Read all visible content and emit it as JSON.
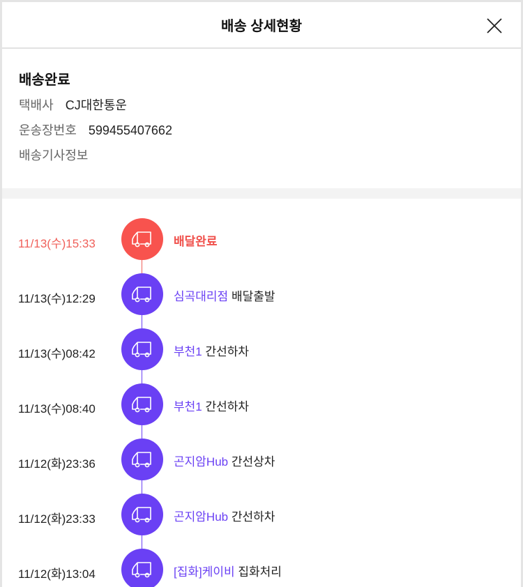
{
  "header": {
    "title": "배송 상세현황",
    "close_icon": "close-icon"
  },
  "summary": {
    "status": "배송완료",
    "courier_label": "택배사",
    "courier_value": "CJ대한통운",
    "tracking_label": "운송장번호",
    "tracking_value": "599455407662",
    "driver_info": "배송기사정보"
  },
  "colors": {
    "done": "#f8534e",
    "progress": "#6a40f4"
  },
  "timeline": [
    {
      "time": "11/13(수)15:33",
      "location": "",
      "event": "배달완료",
      "icon": "truck-icon",
      "done": true
    },
    {
      "time": "11/13(수)12:29",
      "location": "심곡대리점",
      "event": "배달출발",
      "icon": "truck-icon"
    },
    {
      "time": "11/13(수)08:42",
      "location": "부천1",
      "event": "간선하차",
      "icon": "truck-icon"
    },
    {
      "time": "11/13(수)08:40",
      "location": "부천1",
      "event": "간선하차",
      "icon": "truck-icon"
    },
    {
      "time": "11/12(화)23:36",
      "location": "곤지암Hub",
      "event": "간선상차",
      "icon": "truck-icon"
    },
    {
      "time": "11/12(화)23:33",
      "location": "곤지암Hub",
      "event": "간선하차",
      "icon": "truck-icon"
    },
    {
      "time": "11/12(화)13:04",
      "location": "[집화]케이비",
      "event": "집화처리",
      "icon": "truck-icon"
    }
  ]
}
